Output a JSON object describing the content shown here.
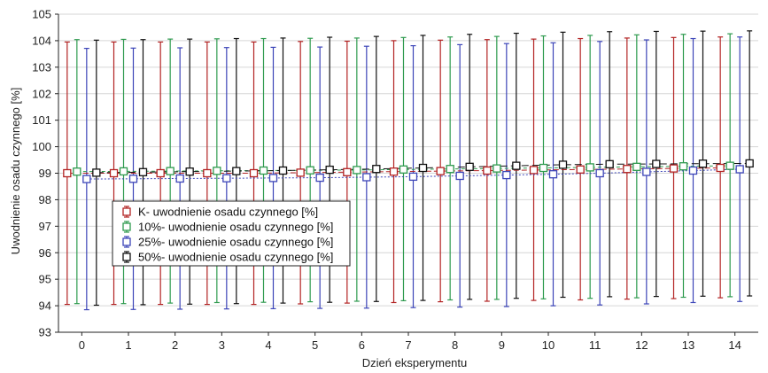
{
  "chart_data": {
    "type": "line",
    "title": "",
    "xlabel": "Dzień eksperymentu",
    "ylabel": "Uwodnienie osadu czynnego [%]",
    "x": [
      0,
      1,
      2,
      3,
      4,
      5,
      6,
      7,
      8,
      9,
      10,
      11,
      12,
      13,
      14
    ],
    "xlim": [
      -0.5,
      14.5
    ],
    "ylim": [
      93,
      105
    ],
    "xticks": [
      0,
      1,
      2,
      3,
      4,
      5,
      6,
      7,
      8,
      9,
      10,
      11,
      12,
      13,
      14
    ],
    "yticks": [
      93,
      94,
      95,
      96,
      97,
      98,
      99,
      100,
      101,
      102,
      103,
      104,
      105
    ],
    "grid": true,
    "legend_position": "center-left",
    "series": [
      {
        "name": "K- uwodnienie osadu czynnego [%]",
        "color": "#b22222",
        "y": [
          99.0,
          99.0,
          99.0,
          99.0,
          99.0,
          99.02,
          99.04,
          99.06,
          99.08,
          99.1,
          99.12,
          99.14,
          99.16,
          99.18,
          99.2
        ],
        "error_low": [
          94.05,
          94.05,
          94.05,
          94.05,
          94.05,
          94.07,
          94.1,
          94.12,
          94.15,
          94.17,
          94.2,
          94.22,
          94.25,
          94.27,
          94.3
        ],
        "error_high": [
          103.95,
          103.95,
          103.95,
          103.95,
          103.95,
          103.97,
          103.98,
          104.0,
          104.02,
          104.04,
          104.06,
          104.08,
          104.1,
          104.12,
          104.14
        ]
      },
      {
        "name": "10%- uwodnienie osadu czynnego [%]",
        "color": "#2e9a4e",
        "y": [
          99.06,
          99.07,
          99.08,
          99.09,
          99.1,
          99.11,
          99.12,
          99.14,
          99.16,
          99.18,
          99.2,
          99.22,
          99.24,
          99.26,
          99.28
        ],
        "error_low": [
          94.08,
          94.08,
          94.1,
          94.12,
          94.13,
          94.15,
          94.17,
          94.19,
          94.22,
          94.24,
          94.26,
          94.28,
          94.3,
          94.32,
          94.34
        ],
        "error_high": [
          104.04,
          104.05,
          104.06,
          104.07,
          104.08,
          104.09,
          104.1,
          104.12,
          104.14,
          104.16,
          104.18,
          104.2,
          104.22,
          104.24,
          104.26
        ]
      },
      {
        "name": "25%- uwodnienie osadu czynnego [%]",
        "color": "#3c45b8",
        "y": [
          98.78,
          98.79,
          98.8,
          98.81,
          98.82,
          98.83,
          98.85,
          98.87,
          98.9,
          98.93,
          98.96,
          99.0,
          99.05,
          99.1,
          99.15
        ],
        "error_low": [
          93.85,
          93.86,
          93.87,
          93.88,
          93.89,
          93.9,
          93.91,
          93.93,
          93.95,
          93.97,
          94.0,
          94.03,
          94.07,
          94.12,
          94.16
        ],
        "error_high": [
          103.71,
          103.72,
          103.73,
          103.74,
          103.75,
          103.76,
          103.79,
          103.81,
          103.85,
          103.89,
          103.92,
          103.97,
          104.03,
          104.08,
          104.14
        ]
      },
      {
        "name": "50%- uwodnienie osadu czynnego [%]",
        "color": "#111111",
        "y": [
          99.02,
          99.04,
          99.06,
          99.08,
          99.1,
          99.13,
          99.16,
          99.2,
          99.24,
          99.28,
          99.32,
          99.34,
          99.35,
          99.36,
          99.37
        ],
        "error_low": [
          94.02,
          94.04,
          94.06,
          94.08,
          94.1,
          94.13,
          94.16,
          94.2,
          94.24,
          94.28,
          94.32,
          94.34,
          94.35,
          94.36,
          94.37
        ],
        "error_high": [
          104.02,
          104.04,
          104.06,
          104.08,
          104.1,
          104.13,
          104.16,
          104.2,
          104.24,
          104.28,
          104.32,
          104.34,
          104.35,
          104.36,
          104.37
        ]
      }
    ]
  }
}
